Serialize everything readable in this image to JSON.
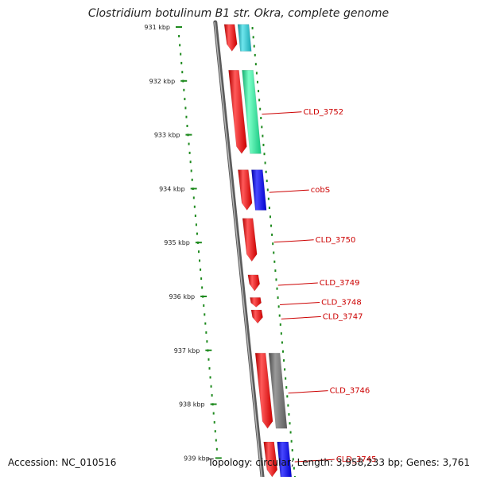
{
  "title": "Clostridium botulinum B1 str. Okra, complete genome",
  "accession": "Accession: NC_010516",
  "summary": "Topology: circular; Length: 3,958,233 bp; Genes: 3,761",
  "colors": {
    "backbone": "#7a7a7a",
    "ticks": "#1e8a1e",
    "label": "#cc0000",
    "strand_forward": "#ff1a1a",
    "cyan": "#22c8d2",
    "teal_green": "#22ee99",
    "blue": "#1010ee",
    "grey": "#707070"
  },
  "ruler": {
    "unit": "kbp",
    "ticks": [
      "931 kbp",
      "932 kbp",
      "933 kbp",
      "934 kbp",
      "935 kbp",
      "936 kbp",
      "937 kbp",
      "938 kbp",
      "939 kbp"
    ]
  },
  "genes": [
    {
      "label": "",
      "track": "inner",
      "color": "strand_forward",
      "start_kbp": 930.95,
      "end_kbp": 931.45
    },
    {
      "label": "",
      "track": "outer",
      "color": "cyan",
      "start_kbp": 930.95,
      "end_kbp": 931.45
    },
    {
      "label": "",
      "track": "inner",
      "color": "strand_forward",
      "start_kbp": 931.8,
      "end_kbp": 933.35
    },
    {
      "label": "CLD_3752",
      "track": "outer",
      "color": "teal_green",
      "start_kbp": 931.8,
      "end_kbp": 933.35
    },
    {
      "label": "",
      "track": "inner",
      "color": "strand_forward",
      "start_kbp": 933.65,
      "end_kbp": 934.4
    },
    {
      "label": "cobS",
      "track": "outer",
      "color": "blue",
      "start_kbp": 933.65,
      "end_kbp": 934.4
    },
    {
      "label": "CLD_3750",
      "track": "inner",
      "color": "strand_forward",
      "start_kbp": 934.55,
      "end_kbp": 935.35
    },
    {
      "label": "CLD_3749",
      "track": "inner",
      "color": "strand_forward",
      "start_kbp": 935.6,
      "end_kbp": 935.9
    },
    {
      "label": "CLD_3748",
      "track": "inner",
      "color": "strand_forward",
      "start_kbp": 936.02,
      "end_kbp": 936.2
    },
    {
      "label": "CLD_3747",
      "track": "inner",
      "color": "strand_forward",
      "start_kbp": 936.25,
      "end_kbp": 936.5
    },
    {
      "label": "",
      "track": "inner",
      "color": "strand_forward",
      "start_kbp": 937.05,
      "end_kbp": 938.45
    },
    {
      "label": "CLD_3746",
      "track": "outer",
      "color": "grey",
      "start_kbp": 937.05,
      "end_kbp": 938.45
    },
    {
      "label": "",
      "track": "inner",
      "color": "strand_forward",
      "start_kbp": 938.7,
      "end_kbp": 939.35
    },
    {
      "label": "CLD_3745",
      "track": "outer",
      "color": "blue",
      "start_kbp": 938.7,
      "end_kbp": 939.35
    }
  ]
}
